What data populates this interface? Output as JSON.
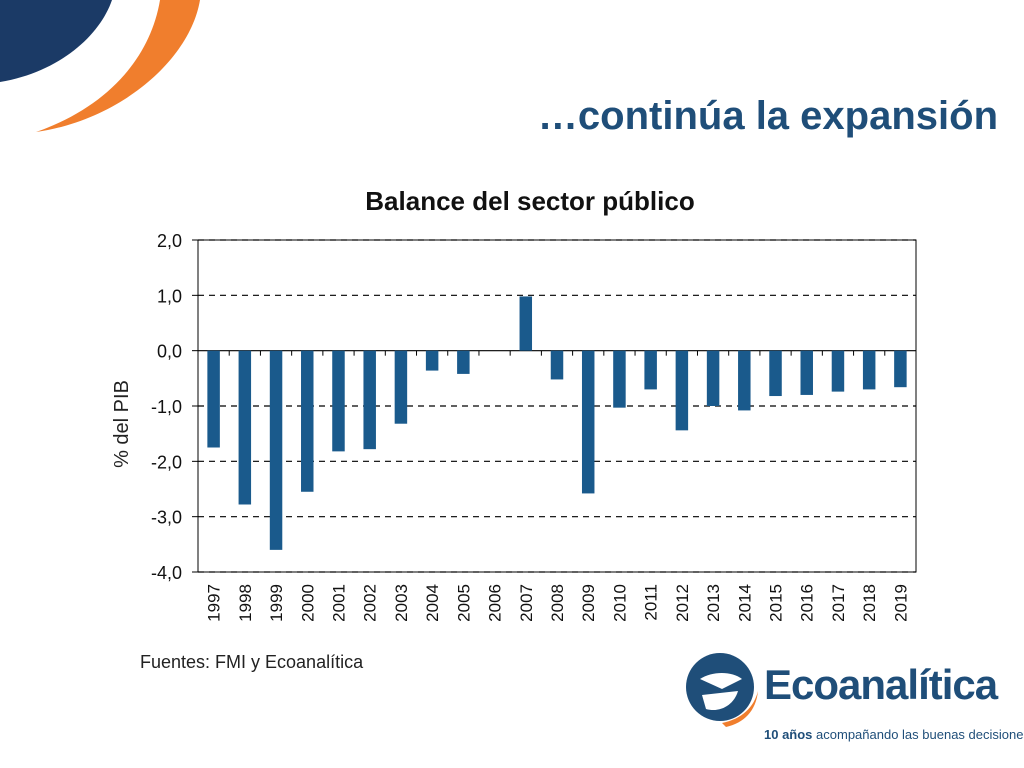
{
  "slide": {
    "title": "…continúa la expansión",
    "source": "Fuentes: FMI y Ecoanalítica"
  },
  "logo": {
    "name": "Ecoanalítica",
    "tagline_bold": "10 años",
    "tagline_rest": " acompañando las buenas decisiones"
  },
  "colors": {
    "bar": "#1a5a8c",
    "title": "#1f4e79",
    "brand_navy": "#1b3a66",
    "brand_orange": "#f07e2d"
  },
  "chart_data": {
    "type": "bar",
    "title": "Balance del sector público",
    "xlabel": "",
    "ylabel": "% del PIB",
    "ylim": [
      -4,
      2
    ],
    "yticks": [
      "2,0",
      "1,0",
      "0,0",
      "-1,0",
      "-2,0",
      "-3,0",
      "-4,0"
    ],
    "ytick_values": [
      2,
      1,
      0,
      -1,
      -2,
      -3,
      -4
    ],
    "grid": "dashed horizontal",
    "categories": [
      "1997",
      "1998",
      "1999",
      "2000",
      "2001",
      "2002",
      "2003",
      "2004",
      "2005",
      "2006",
      "2007",
      "2008",
      "2009",
      "2010",
      "2011",
      "2012",
      "2013",
      "2014",
      "2015",
      "2016",
      "2017",
      "2018",
      "2019"
    ],
    "values": [
      -1.75,
      -2.78,
      -3.6,
      -2.55,
      -1.82,
      -1.78,
      -1.32,
      -0.36,
      -0.42,
      0.0,
      0.98,
      -0.52,
      -2.58,
      -1.03,
      -0.7,
      -1.44,
      -1.0,
      -1.08,
      -0.82,
      -0.8,
      -0.74,
      -0.7,
      -0.66
    ]
  }
}
